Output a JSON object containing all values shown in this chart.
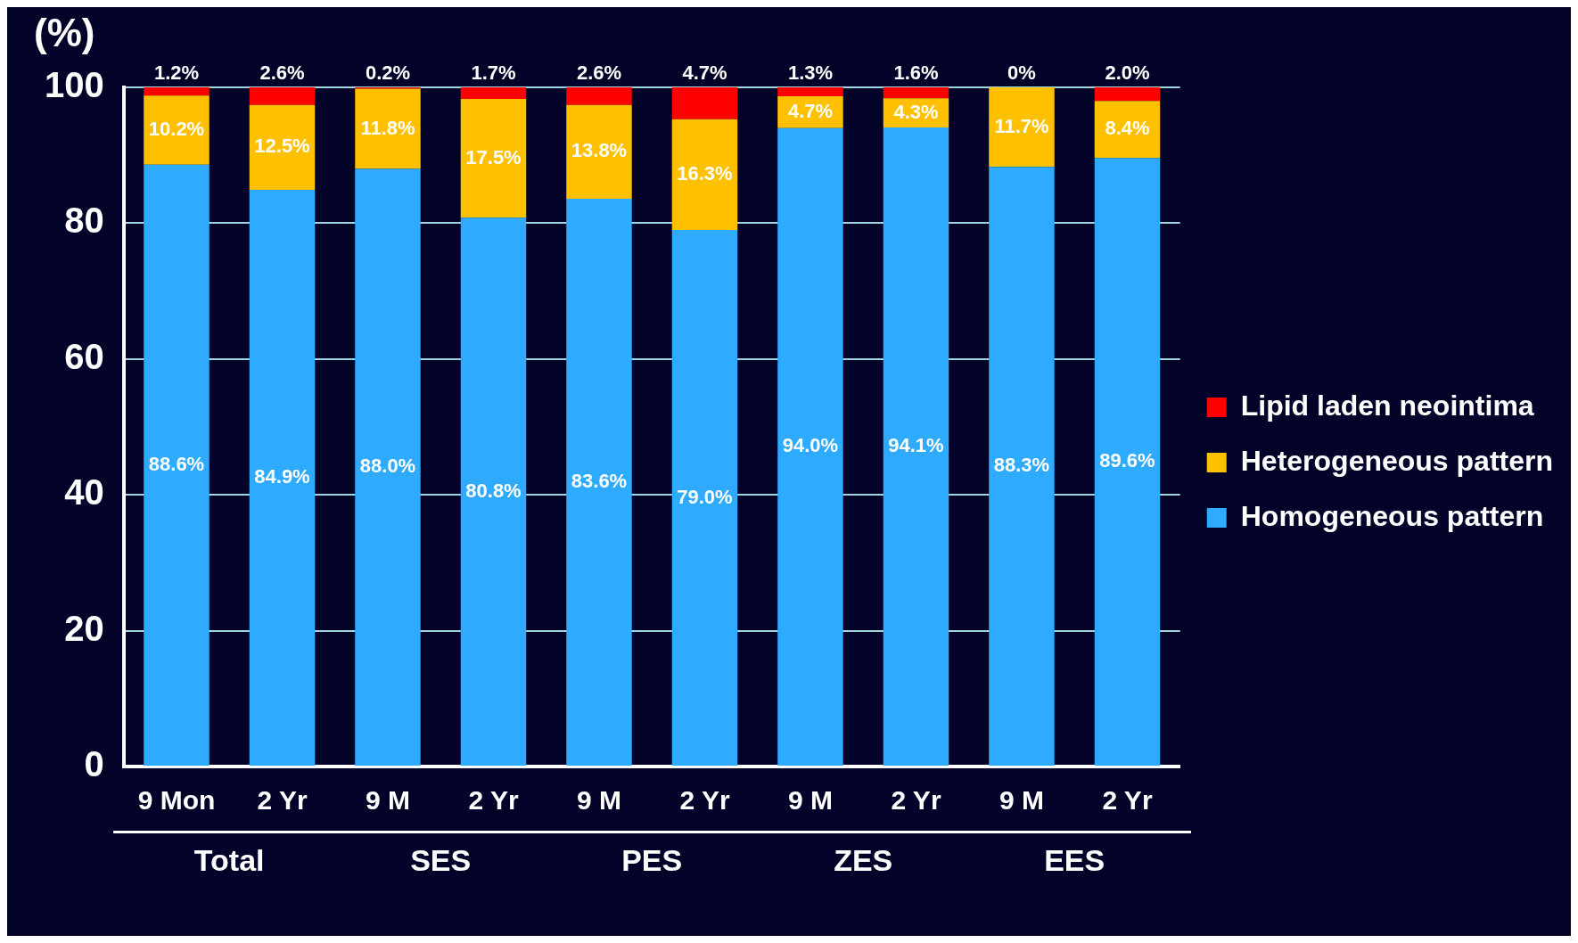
{
  "chart_data": {
    "type": "bar",
    "stacked": true,
    "ylabel": "(%)",
    "categories": [
      "9 Mon",
      "2 Yr",
      "9 M",
      "2 Yr",
      "9 M",
      "2 Yr",
      "9 M",
      "2 Yr",
      "9 M",
      "2 Yr"
    ],
    "series": [
      {
        "name": "Homogeneous pattern",
        "color": "#2eaaff",
        "values": [
          88.6,
          84.9,
          88.0,
          80.8,
          83.6,
          79.0,
          94.0,
          94.1,
          88.3,
          89.6
        ],
        "value_labels": [
          "88.6%",
          "84.9%",
          "88.0%",
          "80.8%",
          "83.6%",
          "79.0%",
          "94.0%",
          "94.1%",
          "88.3%",
          "89.6%"
        ]
      },
      {
        "name": "Heterogeneous pattern",
        "color": "#ffc000",
        "values": [
          10.2,
          12.5,
          11.8,
          17.5,
          13.8,
          16.3,
          4.7,
          4.3,
          11.7,
          8.4
        ],
        "value_labels": [
          "10.2%",
          "12.5%",
          "11.8%",
          "17.5%",
          "13.8%",
          "16.3%",
          "4.7%",
          "4.3%",
          "11.7%",
          "8.4%"
        ]
      },
      {
        "name": "Lipid laden neointima",
        "color": "#ff0000",
        "values": [
          1.2,
          2.6,
          0.2,
          1.7,
          2.6,
          4.7,
          1.3,
          1.6,
          0,
          2.0
        ],
        "value_labels": [
          "1.2%",
          "2.6%",
          "0.2%",
          "1.7%",
          "2.6%",
          "4.7%",
          "1.3%",
          "1.6%",
          "0%",
          "2.0%"
        ]
      }
    ],
    "ylim": [
      0,
      100
    ],
    "yticks": [
      0,
      20,
      40,
      60,
      80,
      100
    ],
    "grid": "y",
    "legend": "right",
    "annotations": [
      "Total",
      "SES",
      "PES",
      "ZES",
      "EES"
    ]
  }
}
